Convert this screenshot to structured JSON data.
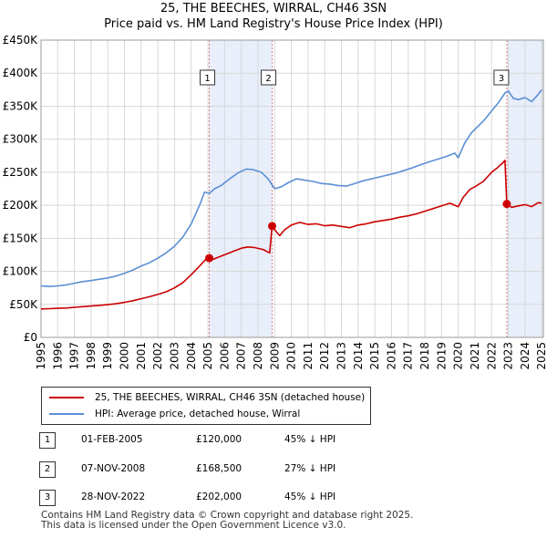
{
  "header": {
    "title": "25, THE BEECHES, WIRRAL, CH46 3SN",
    "subtitle": "Price paid vs. HM Land Registry's House Price Index (HPI)"
  },
  "chart_data": {
    "type": "line",
    "title": "25, THE BEECHES, WIRRAL, CH46 3SN",
    "subtitle": "Price paid vs. HM Land Registry's House Price Index (HPI)",
    "xlabel": "",
    "ylabel": "",
    "xlim": [
      1995.0,
      2025.1
    ],
    "ylim": [
      0,
      450000
    ],
    "x_ticks": [
      "1995",
      "1996",
      "1997",
      "1998",
      "1999",
      "2000",
      "2001",
      "2002",
      "2003",
      "2004",
      "2005",
      "2006",
      "2007",
      "2008",
      "2009",
      "2010",
      "2011",
      "2012",
      "2013",
      "2014",
      "2015",
      "2016",
      "2017",
      "2018",
      "2019",
      "2020",
      "2021",
      "2022",
      "2023",
      "2024",
      "2025"
    ],
    "y_ticks": [
      {
        "value": 0,
        "label": "£0"
      },
      {
        "value": 50000,
        "label": "£50K"
      },
      {
        "value": 100000,
        "label": "£100K"
      },
      {
        "value": 150000,
        "label": "£150K"
      },
      {
        "value": 200000,
        "label": "£200K"
      },
      {
        "value": 250000,
        "label": "£250K"
      },
      {
        "value": 300000,
        "label": "£300K"
      },
      {
        "value": 350000,
        "label": "£350K"
      },
      {
        "value": 400000,
        "label": "£400K"
      },
      {
        "value": 450000,
        "label": "£450K"
      }
    ],
    "grid": true,
    "series": [
      {
        "name": "25, THE BEECHES, WIRRAL, CH46 3SN (detached house)",
        "color": "#cc0000",
        "points": [
          [
            1995.0,
            43000
          ],
          [
            1995.5,
            43500
          ],
          [
            1996.0,
            44000
          ],
          [
            1996.5,
            44500
          ],
          [
            1997.0,
            45500
          ],
          [
            1997.5,
            46500
          ],
          [
            1998.0,
            47500
          ],
          [
            1998.5,
            48500
          ],
          [
            1999.0,
            49500
          ],
          [
            1999.5,
            51000
          ],
          [
            2000.0,
            53000
          ],
          [
            2000.5,
            55500
          ],
          [
            2001.0,
            58500
          ],
          [
            2001.5,
            61500
          ],
          [
            2002.0,
            65000
          ],
          [
            2002.5,
            69000
          ],
          [
            2003.0,
            75000
          ],
          [
            2003.5,
            83000
          ],
          [
            2004.0,
            95000
          ],
          [
            2004.5,
            108000
          ],
          [
            2004.9,
            119000
          ],
          [
            2005.08,
            120000
          ],
          [
            2005.3,
            118000
          ],
          [
            2005.6,
            121000
          ],
          [
            2006.0,
            125000
          ],
          [
            2006.5,
            130000
          ],
          [
            2007.0,
            135000
          ],
          [
            2007.4,
            137000
          ],
          [
            2007.8,
            136000
          ],
          [
            2008.3,
            133000
          ],
          [
            2008.7,
            128000
          ],
          [
            2008.85,
            168500
          ],
          [
            2009.1,
            160000
          ],
          [
            2009.3,
            154000
          ],
          [
            2009.6,
            163000
          ],
          [
            2010.0,
            170000
          ],
          [
            2010.5,
            174000
          ],
          [
            2011.0,
            171000
          ],
          [
            2011.5,
            172000
          ],
          [
            2012.0,
            169000
          ],
          [
            2012.5,
            170000
          ],
          [
            2013.0,
            168000
          ],
          [
            2013.5,
            166000
          ],
          [
            2014.0,
            170000
          ],
          [
            2014.5,
            172000
          ],
          [
            2015.0,
            175000
          ],
          [
            2015.5,
            177000
          ],
          [
            2016.0,
            179000
          ],
          [
            2016.5,
            182000
          ],
          [
            2017.0,
            184000
          ],
          [
            2017.5,
            187000
          ],
          [
            2018.0,
            191000
          ],
          [
            2018.5,
            195000
          ],
          [
            2019.0,
            199000
          ],
          [
            2019.5,
            203000
          ],
          [
            2020.0,
            198000
          ],
          [
            2020.3,
            212000
          ],
          [
            2020.7,
            224000
          ],
          [
            2021.0,
            228000
          ],
          [
            2021.5,
            236000
          ],
          [
            2022.0,
            250000
          ],
          [
            2022.4,
            258000
          ],
          [
            2022.7,
            265000
          ],
          [
            2022.8,
            268000
          ],
          [
            2022.91,
            202000
          ],
          [
            2023.2,
            197000
          ],
          [
            2023.6,
            199000
          ],
          [
            2024.0,
            201000
          ],
          [
            2024.4,
            198000
          ],
          [
            2024.8,
            204000
          ],
          [
            2025.0,
            203000
          ]
        ]
      },
      {
        "name": "HPI: Average price, detached house, Wirral",
        "color": "#5b8fd6",
        "points": [
          [
            1995.0,
            78000
          ],
          [
            1995.5,
            77000
          ],
          [
            1996.0,
            78000
          ],
          [
            1996.5,
            79500
          ],
          [
            1997.0,
            82000
          ],
          [
            1997.5,
            84500
          ],
          [
            1998.0,
            86000
          ],
          [
            1998.5,
            88000
          ],
          [
            1999.0,
            90000
          ],
          [
            1999.5,
            93000
          ],
          [
            2000.0,
            97000
          ],
          [
            2000.5,
            102000
          ],
          [
            2001.0,
            108000
          ],
          [
            2001.5,
            113000
          ],
          [
            2002.0,
            120000
          ],
          [
            2002.5,
            128000
          ],
          [
            2003.0,
            138000
          ],
          [
            2003.5,
            152000
          ],
          [
            2004.0,
            172000
          ],
          [
            2004.5,
            200000
          ],
          [
            2004.8,
            220000
          ],
          [
            2005.08,
            218000
          ],
          [
            2005.4,
            225000
          ],
          [
            2005.8,
            230000
          ],
          [
            2006.3,
            240000
          ],
          [
            2006.8,
            249000
          ],
          [
            2007.3,
            255000
          ],
          [
            2007.7,
            254000
          ],
          [
            2008.2,
            250000
          ],
          [
            2008.6,
            240000
          ],
          [
            2009.0,
            225000
          ],
          [
            2009.4,
            228000
          ],
          [
            2009.8,
            234000
          ],
          [
            2010.3,
            240000
          ],
          [
            2010.8,
            238000
          ],
          [
            2011.3,
            236000
          ],
          [
            2011.8,
            233000
          ],
          [
            2012.3,
            232000
          ],
          [
            2012.8,
            230000
          ],
          [
            2013.3,
            229000
          ],
          [
            2013.8,
            233000
          ],
          [
            2014.3,
            237000
          ],
          [
            2014.8,
            240000
          ],
          [
            2015.3,
            243000
          ],
          [
            2015.8,
            246000
          ],
          [
            2016.3,
            249000
          ],
          [
            2016.8,
            253000
          ],
          [
            2017.3,
            257000
          ],
          [
            2017.8,
            262000
          ],
          [
            2018.3,
            266000
          ],
          [
            2018.8,
            270000
          ],
          [
            2019.3,
            274000
          ],
          [
            2019.8,
            279000
          ],
          [
            2020.0,
            272000
          ],
          [
            2020.4,
            295000
          ],
          [
            2020.8,
            310000
          ],
          [
            2021.2,
            320000
          ],
          [
            2021.6,
            330000
          ],
          [
            2022.0,
            343000
          ],
          [
            2022.4,
            355000
          ],
          [
            2022.8,
            370000
          ],
          [
            2023.0,
            373000
          ],
          [
            2023.3,
            362000
          ],
          [
            2023.6,
            360000
          ],
          [
            2024.0,
            363000
          ],
          [
            2024.4,
            357000
          ],
          [
            2024.8,
            368000
          ],
          [
            2025.0,
            375000
          ]
        ]
      }
    ],
    "sales": [
      {
        "num": "1",
        "x": 2005.08,
        "value": 120000
      },
      {
        "num": "2",
        "x": 2008.85,
        "value": 168500
      },
      {
        "num": "3",
        "x": 2022.91,
        "value": 202000
      }
    ],
    "shaded_regions": [
      [
        2005.08,
        2008.85
      ],
      [
        2022.91,
        2025.1
      ]
    ]
  },
  "legend": {
    "property_label": "25, THE BEECHES, WIRRAL, CH46 3SN (detached house)",
    "hpi_label": "HPI: Average price, detached house, Wirral",
    "property_color": "#cc0000",
    "hpi_color": "#5b8fd6"
  },
  "sales_table": [
    {
      "num": "1",
      "date": "01-FEB-2005",
      "price": "£120,000",
      "hpi": "45% ↓ HPI"
    },
    {
      "num": "2",
      "date": "07-NOV-2008",
      "price": "£168,500",
      "hpi": "27% ↓ HPI"
    },
    {
      "num": "3",
      "date": "28-NOV-2022",
      "price": "£202,000",
      "hpi": "45% ↓ HPI"
    }
  ],
  "footer": {
    "line1": "Contains HM Land Registry data © Crown copyright and database right 2025.",
    "line2": "This data is licensed under the Open Government Licence v3.0."
  }
}
